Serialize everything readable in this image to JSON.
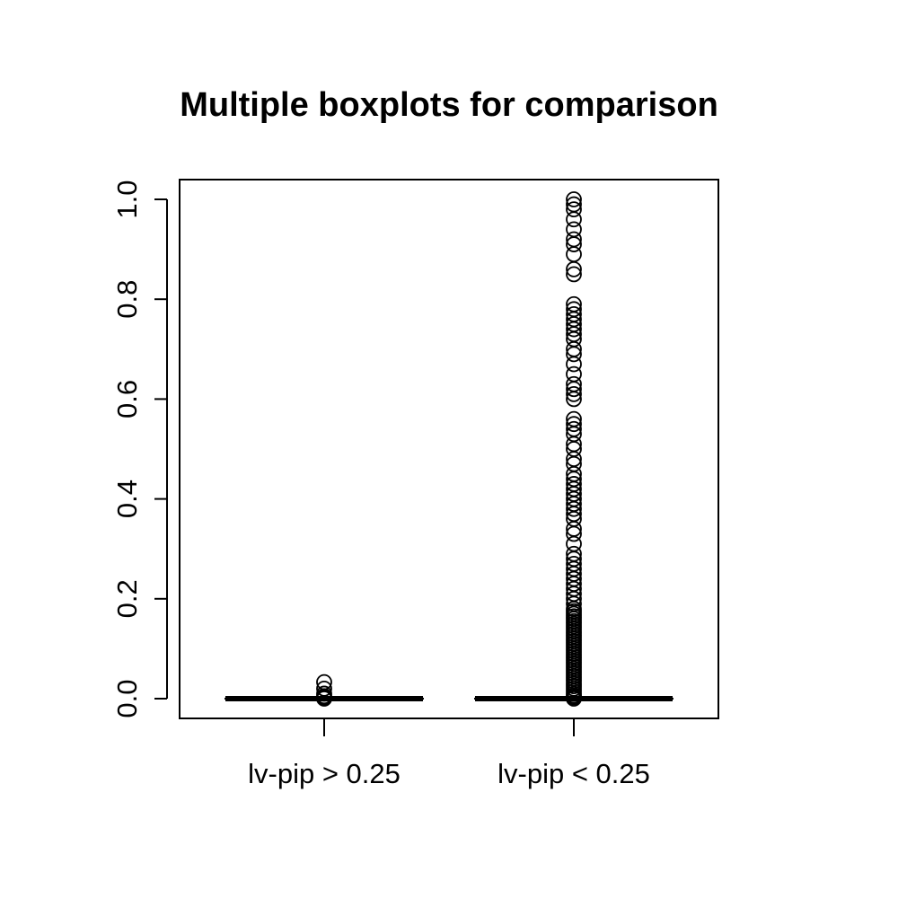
{
  "chart_data": {
    "type": "boxplot",
    "title": "Multiple boxplots for comparison",
    "xlabel": "",
    "ylabel": "",
    "ylim": [
      0,
      1.0
    ],
    "yticks": [
      "0.0",
      "0.2",
      "0.4",
      "0.6",
      "0.8",
      "1.0"
    ],
    "grid": false,
    "categories": [
      "lv-pip > 0.25",
      "lv-pip < 0.25"
    ],
    "boxes": [
      {
        "category": "lv-pip > 0.25",
        "min": 0,
        "q1": 0,
        "median": 0,
        "q3": 0,
        "max": 0,
        "outliers": [
          0.0,
          0.002,
          0.005,
          0.01,
          0.02,
          0.033
        ]
      },
      {
        "category": "lv-pip < 0.25",
        "min": 0,
        "q1": 0,
        "median": 0,
        "q3": 0,
        "max": 0,
        "outliers": [
          0.0,
          0.003,
          0.006,
          0.01,
          0.015,
          0.02,
          0.025,
          0.03,
          0.035,
          0.04,
          0.045,
          0.05,
          0.055,
          0.06,
          0.065,
          0.07,
          0.075,
          0.08,
          0.085,
          0.09,
          0.095,
          0.1,
          0.105,
          0.11,
          0.115,
          0.12,
          0.125,
          0.13,
          0.135,
          0.14,
          0.145,
          0.15,
          0.155,
          0.16,
          0.165,
          0.17,
          0.175,
          0.18,
          0.19,
          0.2,
          0.21,
          0.22,
          0.23,
          0.24,
          0.25,
          0.26,
          0.27,
          0.28,
          0.29,
          0.31,
          0.33,
          0.34,
          0.36,
          0.37,
          0.38,
          0.39,
          0.4,
          0.41,
          0.42,
          0.43,
          0.44,
          0.45,
          0.47,
          0.48,
          0.5,
          0.51,
          0.53,
          0.54,
          0.55,
          0.56,
          0.6,
          0.61,
          0.62,
          0.63,
          0.65,
          0.67,
          0.69,
          0.7,
          0.72,
          0.73,
          0.74,
          0.75,
          0.76,
          0.77,
          0.78,
          0.79,
          0.85,
          0.86,
          0.89,
          0.91,
          0.92,
          0.94,
          0.96,
          0.98,
          0.99,
          1.0
        ]
      }
    ],
    "colors": {
      "stroke": "#000000",
      "background": "#ffffff"
    }
  }
}
